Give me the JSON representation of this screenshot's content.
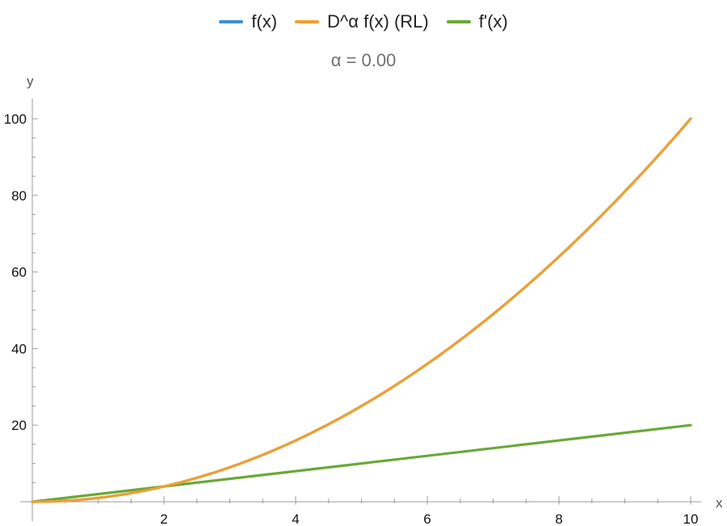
{
  "legend": {
    "items": [
      {
        "label": "f(x)",
        "color": "#3d8fd1"
      },
      {
        "label": "D^α f(x) (RL)",
        "color": "#f0a030"
      },
      {
        "label": "f'(x)",
        "color": "#6aa838"
      }
    ]
  },
  "chart_data": {
    "type": "line",
    "title": "α = 0.00",
    "xlabel": "x",
    "ylabel": "y",
    "xlim": [
      0,
      10
    ],
    "ylim": [
      0,
      100
    ],
    "xticks": [
      2,
      4,
      6,
      8,
      10
    ],
    "yticks": [
      20,
      40,
      60,
      80,
      100
    ],
    "grid": false,
    "legend_position": "top",
    "series": [
      {
        "name": "f(x)",
        "color": "#3d8fd1",
        "x": [
          0,
          1,
          2,
          3,
          4,
          5,
          6,
          7,
          8,
          9,
          10
        ],
        "y": [
          0,
          1,
          4,
          9,
          16,
          25,
          36,
          49,
          64,
          81,
          100
        ]
      },
      {
        "name": "D^α f(x) (RL)",
        "color": "#f0a030",
        "x": [
          0,
          1,
          2,
          3,
          4,
          5,
          6,
          7,
          8,
          9,
          10
        ],
        "y": [
          0,
          1,
          4,
          9,
          16,
          25,
          36,
          49,
          64,
          81,
          100
        ]
      },
      {
        "name": "f'(x)",
        "color": "#6aa838",
        "x": [
          0,
          10
        ],
        "y": [
          0,
          20
        ]
      }
    ]
  }
}
